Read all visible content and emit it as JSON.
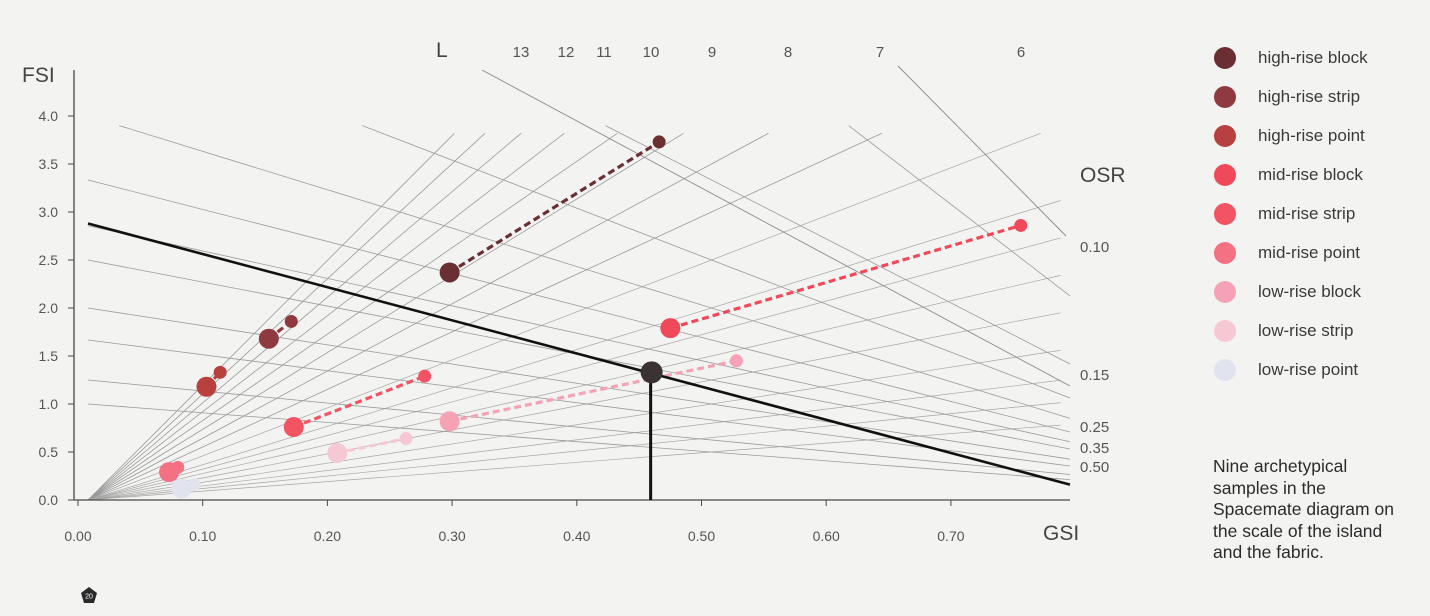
{
  "chart_data": {
    "type": "scatter",
    "title": "",
    "xlabel": "GSI",
    "ylabel": "FSI",
    "xlim": [
      0,
      0.8
    ],
    "ylim": [
      0,
      4.0
    ],
    "x_ticks": [
      0.0,
      0.1,
      0.2,
      0.3,
      0.4,
      0.5,
      0.6,
      0.7
    ],
    "x_tick_labels": [
      "0.00",
      "0.10",
      "0.20",
      "0.30",
      "0.40",
      "0.50",
      "0.60",
      "0.70"
    ],
    "y_ticks": [
      0.0,
      0.5,
      1.0,
      1.5,
      2.0,
      2.5,
      3.0,
      3.5,
      4.0
    ],
    "y_tick_labels": [
      "0.0",
      "0.5",
      "1.0",
      "1.5",
      "2.0",
      "2.5",
      "3.0",
      "3.5",
      "4.0"
    ],
    "grid": false,
    "l_axis_label": "L",
    "l_values": [
      13,
      12,
      11,
      10,
      9,
      8,
      7,
      6
    ],
    "l_labels": [
      "13",
      "12",
      "11",
      "10",
      "9",
      "8",
      "7",
      "6"
    ],
    "osr_axis_label": "OSR",
    "osr_values": [
      0.1,
      0.15,
      0.25,
      0.35,
      0.5
    ],
    "osr_labels": [
      "0.10",
      "0.15",
      "0.25",
      "0.35",
      "0.50"
    ],
    "series": [
      {
        "name": "high-rise block",
        "color": "#6a2f33",
        "points": [
          [
            0.29,
            2.37
          ],
          [
            0.458,
            3.73
          ]
        ]
      },
      {
        "name": "high-rise strip",
        "color": "#8e3a3e",
        "points": [
          [
            0.145,
            1.68
          ],
          [
            0.163,
            1.86
          ]
        ]
      },
      {
        "name": "high-rise point",
        "color": "#b8403f",
        "points": [
          [
            0.095,
            1.18
          ],
          [
            0.106,
            1.33
          ]
        ]
      },
      {
        "name": "mid-rise block",
        "color": "#f04a5a",
        "points": [
          [
            0.467,
            1.79
          ],
          [
            0.748,
            2.86
          ]
        ]
      },
      {
        "name": "mid-rise strip",
        "color": "#f25464",
        "points": [
          [
            0.165,
            0.76
          ],
          [
            0.27,
            1.29
          ]
        ]
      },
      {
        "name": "mid-rise point",
        "color": "#f47183",
        "points": [
          [
            0.065,
            0.29
          ],
          [
            0.072,
            0.34
          ]
        ]
      },
      {
        "name": "low-rise block",
        "color": "#f4a2b4",
        "points": [
          [
            0.29,
            0.82
          ],
          [
            0.52,
            1.45
          ]
        ]
      },
      {
        "name": "low-rise strip",
        "color": "#f6c8d3",
        "points": [
          [
            0.2,
            0.49
          ],
          [
            0.255,
            0.64
          ]
        ]
      },
      {
        "name": "low-rise point",
        "color": "#e1e3ee",
        "points": [
          [
            0.075,
            0.12
          ],
          [
            0.085,
            0.16
          ]
        ]
      }
    ],
    "highlight_point": {
      "x": 0.452,
      "y": 1.33,
      "color": "#3b3333"
    },
    "highlight_line": {
      "x1": 0.0,
      "y1": 2.88,
      "x2": 0.8,
      "y2": 0.16
    }
  },
  "legend": {
    "items": [
      {
        "label": "high-rise block",
        "color": "#6a2f33"
      },
      {
        "label": "high-rise strip",
        "color": "#8e3a3e"
      },
      {
        "label": "high-rise point",
        "color": "#b8403f"
      },
      {
        "label": "mid-rise block",
        "color": "#f04a5a"
      },
      {
        "label": "mid-rise strip",
        "color": "#f25464"
      },
      {
        "label": "mid-rise point",
        "color": "#f47183"
      },
      {
        "label": "low-rise block",
        "color": "#f4a2b4"
      },
      {
        "label": "low-rise strip",
        "color": "#f6c8d3"
      },
      {
        "label": "low-rise point",
        "color": "#e1e3ee"
      }
    ]
  },
  "caption": "Nine archetypical samples in the Spacemate diagram on the scale of the island and the fabric.",
  "page_badge": "20"
}
